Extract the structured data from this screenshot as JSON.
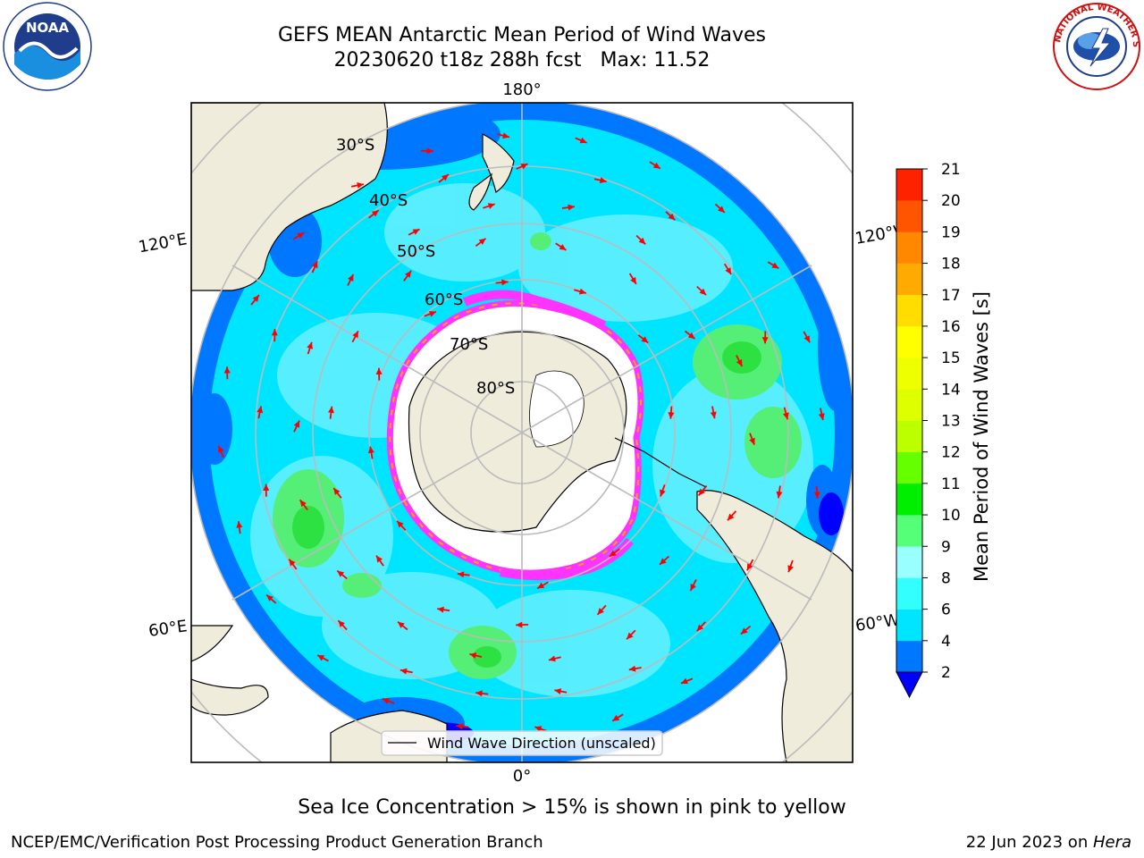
{
  "title": {
    "line1": "GEFS MEAN Antarctic Mean Period of Wind Waves",
    "run": "20230620 t18z 288h fcst",
    "max": "Max: 11.52"
  },
  "map": {
    "projection": "south polar stereographic",
    "lon_labels": {
      "top": "180°",
      "bottom": "0°",
      "left_upper": "120°E",
      "left_lower": "60°E",
      "right_upper": "120°W",
      "right_lower": "60°W"
    },
    "lat_labels": [
      "30°S",
      "40°S",
      "50°S",
      "60°S",
      "70°S",
      "80°S"
    ],
    "legend_label": "Wind Wave Direction (unscaled)",
    "arrow_color": "#ff0000",
    "land_color": "#efecdc",
    "ice_color": "#ffffff",
    "ice_edge_colors": [
      "#ff33ff",
      "#ffa500",
      "#ffff66"
    ]
  },
  "colorbar": {
    "label": "Mean Period of Wind Waves [s]",
    "ticks": [
      "2",
      "4",
      "6",
      "8",
      "9",
      "10",
      "11",
      "12",
      "13",
      "14",
      "15",
      "16",
      "17",
      "18",
      "19",
      "20",
      "21"
    ],
    "colors": [
      "#0077ff",
      "#00e5ff",
      "#33ffff",
      "#99ffff",
      "#55ff77",
      "#00ee00",
      "#66ff00",
      "#bbff00",
      "#ddff00",
      "#eeff00",
      "#ffff00",
      "#ffdd00",
      "#ffaa00",
      "#ff8800",
      "#ff5500",
      "#ff2200"
    ],
    "under_color": "#0000ff"
  },
  "footer": {
    "note": "Sea Ice Concentration > 15% is shown in pink to yellow",
    "credit": "NCEP/EMC/Verification Post Processing Product Generation Branch",
    "date_prefix": "22 Jun 2023 on ",
    "date_host": "Hera"
  },
  "logos": {
    "left": "NOAA",
    "right": "NATIONAL WEATHER SERVICE"
  }
}
